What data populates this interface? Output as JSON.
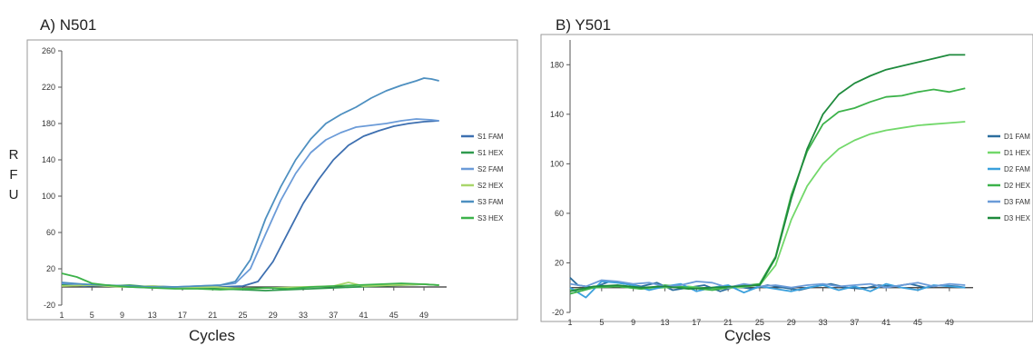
{
  "rfu_letters": [
    "R",
    "F",
    "U"
  ],
  "chart_data": [
    {
      "type": "line",
      "title": "A) N501",
      "xlabel": "Cycles",
      "ylabel": "R F U",
      "xlim": [
        1,
        52
      ],
      "ylim": [
        -20,
        260
      ],
      "yticks": [
        -20,
        20,
        60,
        100,
        140,
        180,
        220,
        260
      ],
      "xticks": [
        1,
        5,
        9,
        13,
        17,
        21,
        25,
        29,
        33,
        37,
        41,
        45,
        49
      ],
      "legend_position": "right",
      "series": [
        {
          "name": "S1 FAM",
          "color": "#3d6fb0",
          "x": [
            1,
            4,
            7,
            10,
            13,
            16,
            19,
            22,
            25,
            27,
            29,
            31,
            33,
            35,
            37,
            39,
            41,
            43,
            45,
            47,
            49,
            51
          ],
          "y": [
            3,
            1,
            2,
            0,
            1,
            0,
            -1,
            0,
            1,
            6,
            28,
            60,
            92,
            118,
            140,
            156,
            166,
            172,
            177,
            180,
            182,
            183
          ]
        },
        {
          "name": "S1 HEX",
          "color": "#2f9a4e",
          "x": [
            1,
            4,
            7,
            10,
            13,
            16,
            19,
            22,
            25,
            28,
            31,
            34,
            37,
            40,
            43,
            46,
            49,
            51
          ],
          "y": [
            2,
            3,
            1,
            2,
            0,
            -1,
            0,
            -2,
            -3,
            -4,
            -3,
            -2,
            -1,
            0,
            1,
            2,
            3,
            2
          ]
        },
        {
          "name": "S2 FAM",
          "color": "#6b9bd8",
          "x": [
            1,
            4,
            7,
            10,
            13,
            16,
            19,
            22,
            24,
            26,
            28,
            30,
            32,
            34,
            36,
            38,
            40,
            42,
            44,
            46,
            48,
            50,
            51
          ],
          "y": [
            4,
            2,
            1,
            0,
            -1,
            0,
            1,
            2,
            4,
            20,
            58,
            95,
            125,
            148,
            162,
            170,
            176,
            178,
            180,
            183,
            185,
            184,
            183
          ]
        },
        {
          "name": "S2 HEX",
          "color": "#a9d66b",
          "x": [
            1,
            5,
            9,
            13,
            17,
            21,
            25,
            29,
            33,
            37,
            39,
            41,
            45,
            49,
            51
          ],
          "y": [
            1,
            2,
            0,
            1,
            -1,
            0,
            -2,
            -1,
            0,
            1,
            5,
            1,
            2,
            3,
            2
          ]
        },
        {
          "name": "S3 FAM",
          "color": "#4d8fc0",
          "x": [
            1,
            4,
            7,
            10,
            13,
            16,
            19,
            22,
            24,
            26,
            28,
            30,
            32,
            34,
            36,
            38,
            40,
            42,
            44,
            46,
            48,
            49,
            50,
            51
          ],
          "y": [
            5,
            3,
            2,
            1,
            0,
            0,
            1,
            2,
            6,
            30,
            75,
            110,
            140,
            163,
            180,
            190,
            198,
            208,
            216,
            222,
            227,
            230,
            229,
            227
          ]
        },
        {
          "name": "S3 HEX",
          "color": "#3cb24a",
          "x": [
            1,
            3,
            5,
            7,
            10,
            13,
            16,
            19,
            22,
            25,
            28,
            31,
            34,
            37,
            40,
            43,
            46,
            49,
            51
          ],
          "y": [
            15,
            11,
            4,
            2,
            0,
            -1,
            -2,
            -2,
            -3,
            -2,
            -1,
            -2,
            0,
            1,
            2,
            3,
            4,
            3,
            2
          ]
        }
      ]
    },
    {
      "type": "line",
      "title": "B) Y501",
      "xlabel": "Cycles",
      "ylabel": "",
      "xlim": [
        1,
        52
      ],
      "ylim": [
        -20,
        200
      ],
      "yticks": [
        -20,
        20,
        60,
        100,
        140,
        180
      ],
      "xticks": [
        1,
        5,
        9,
        13,
        17,
        21,
        25,
        29,
        33,
        37,
        41,
        45,
        49
      ],
      "legend_position": "right",
      "series": [
        {
          "name": "D1 FAM",
          "color": "#2c6e9e",
          "x": [
            1,
            2,
            4,
            6,
            8,
            10,
            12,
            14,
            16,
            18,
            20,
            22,
            24,
            26,
            28,
            30,
            32,
            34,
            36,
            38,
            40,
            42,
            44,
            46,
            48,
            50,
            51
          ],
          "y": [
            8,
            2,
            0,
            5,
            3,
            1,
            4,
            -2,
            0,
            2,
            -3,
            1,
            -1,
            2,
            0,
            -2,
            1,
            3,
            0,
            -1,
            2,
            1,
            3,
            0,
            2,
            1,
            0
          ]
        },
        {
          "name": "D1 HEX",
          "color": "#72d86a",
          "x": [
            1,
            4,
            7,
            10,
            13,
            16,
            19,
            22,
            25,
            27,
            29,
            31,
            33,
            35,
            37,
            39,
            41,
            43,
            45,
            47,
            49,
            51
          ],
          "y": [
            -2,
            0,
            1,
            -1,
            0,
            1,
            -1,
            0,
            2,
            18,
            55,
            82,
            100,
            112,
            119,
            124,
            127,
            129,
            131,
            132,
            133,
            134
          ]
        },
        {
          "name": "D2 FAM",
          "color": "#3aa0dc",
          "x": [
            1,
            3,
            5,
            7,
            9,
            11,
            13,
            15,
            17,
            19,
            21,
            23,
            25,
            27,
            29,
            31,
            33,
            35,
            37,
            39,
            41,
            43,
            45,
            47,
            49,
            51
          ],
          "y": [
            0,
            -8,
            5,
            4,
            2,
            -2,
            1,
            3,
            -3,
            0,
            2,
            -4,
            1,
            -1,
            -3,
            0,
            2,
            -2,
            1,
            -3,
            3,
            0,
            -2,
            2,
            1,
            0
          ]
        },
        {
          "name": "D2 HEX",
          "color": "#3cb24a",
          "x": [
            1,
            4,
            7,
            10,
            13,
            16,
            19,
            22,
            25,
            27,
            29,
            31,
            33,
            35,
            37,
            39,
            41,
            43,
            45,
            47,
            49,
            51
          ],
          "y": [
            -5,
            0,
            1,
            -1,
            2,
            0,
            -2,
            1,
            3,
            25,
            75,
            110,
            132,
            142,
            145,
            150,
            154,
            155,
            158,
            160,
            158,
            161
          ]
        },
        {
          "name": "D3 FAM",
          "color": "#6b9bd8",
          "x": [
            1,
            3,
            5,
            7,
            9,
            11,
            13,
            15,
            17,
            19,
            21,
            23,
            25,
            27,
            29,
            31,
            33,
            35,
            37,
            39,
            41,
            43,
            45,
            47,
            49,
            51
          ],
          "y": [
            3,
            1,
            6,
            5,
            3,
            4,
            1,
            2,
            5,
            4,
            0,
            3,
            1,
            2,
            0,
            2,
            3,
            1,
            2,
            3,
            0,
            2,
            4,
            1,
            3,
            2
          ]
        },
        {
          "name": "D3 HEX",
          "color": "#1e8a3c",
          "x": [
            1,
            4,
            7,
            10,
            13,
            16,
            19,
            22,
            25,
            27,
            29,
            31,
            33,
            35,
            37,
            39,
            41,
            43,
            45,
            47,
            49,
            51
          ],
          "y": [
            -3,
            1,
            2,
            0,
            1,
            -1,
            0,
            1,
            2,
            24,
            72,
            112,
            140,
            156,
            165,
            171,
            176,
            179,
            182,
            185,
            188,
            188
          ]
        }
      ]
    }
  ]
}
